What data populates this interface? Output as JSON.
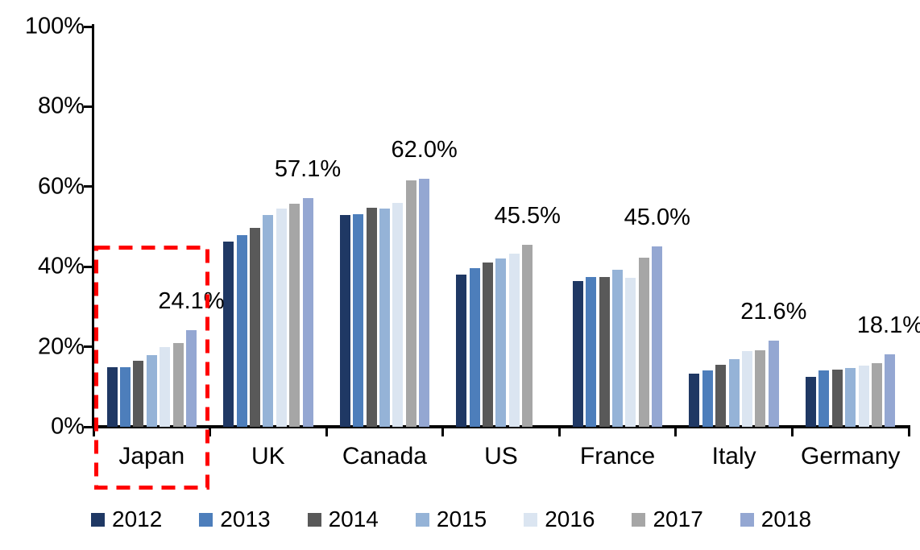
{
  "chart_data": {
    "type": "bar",
    "title": "",
    "categories": [
      "Japan",
      "UK",
      "Canada",
      "US",
      "France",
      "Italy",
      "Germany"
    ],
    "series": [
      {
        "name": "2012",
        "color": "#1F3864",
        "values": [
          14.8,
          46.2,
          53.0,
          38.0,
          36.4,
          13.3,
          12.5
        ]
      },
      {
        "name": "2013",
        "color": "#4D7EBB",
        "values": [
          14.9,
          47.8,
          53.2,
          39.7,
          37.5,
          14.1,
          14.0
        ]
      },
      {
        "name": "2014",
        "color": "#595959",
        "values": [
          16.5,
          49.8,
          54.7,
          41.0,
          37.5,
          15.4,
          14.3
        ]
      },
      {
        "name": "2015",
        "color": "#95B3D7",
        "values": [
          18.0,
          53.0,
          54.5,
          42.0,
          39.2,
          16.9,
          14.7
        ]
      },
      {
        "name": "2016",
        "color": "#DBE5F1",
        "values": [
          20.0,
          54.5,
          56.0,
          43.3,
          37.2,
          18.9,
          15.3
        ]
      },
      {
        "name": "2017",
        "color": "#A6A6A6",
        "values": [
          20.9,
          55.7,
          61.6,
          45.5,
          42.3,
          19.1,
          15.9
        ]
      },
      {
        "name": "2018",
        "color": "#94A7D2",
        "values": [
          24.1,
          57.1,
          62.0,
          null,
          45.0,
          21.6,
          18.1
        ]
      }
    ],
    "data_labels": [
      "24.1%",
      "57.1%",
      "62.0%",
      "45.5%",
      "45.0%",
      "21.6%",
      "18.1%"
    ],
    "y_ticks": [
      "0%",
      "20%",
      "40%",
      "60%",
      "80%",
      "100%"
    ],
    "ylim": [
      0,
      100
    ],
    "grid": false,
    "legend_position": "bottom",
    "legend_entries": [
      "2012",
      "2013",
      "2014",
      "2015",
      "2016",
      "2017",
      "2018"
    ],
    "highlight": {
      "category": "Japan",
      "color": "#FF0000",
      "style": "dashed"
    }
  }
}
